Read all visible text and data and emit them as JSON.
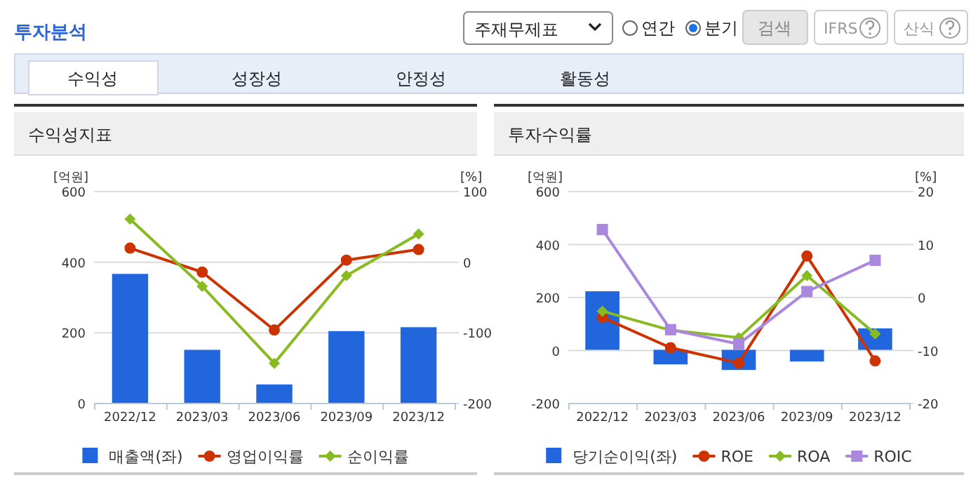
{
  "chart_data": [
    {
      "type": "other",
      "title": "투자분석",
      "annotations": [
        "주재무제표",
        "연간",
        "분기",
        "검색",
        "IFRS",
        "산식",
        "수익성",
        "성장성",
        "안정성",
        "활동성"
      ]
    },
    {
      "type": "bar",
      "title": "수익성지표",
      "ylabel": "[억원]",
      "y2label": "[%]",
      "categories": [
        "2022/12",
        "2023/03",
        "2023/06",
        "2023/09",
        "2023/12"
      ],
      "ylim": [
        0,
        600
      ],
      "yticks": [
        0,
        200,
        400,
        600
      ],
      "y2lim": [
        -200,
        100
      ],
      "y2ticks": [
        -200,
        -100,
        0,
        100
      ],
      "grid": "y",
      "legend": "bottom",
      "series": [
        {
          "name": "매출액(좌)",
          "type": "bar",
          "color": "#2266dd",
          "values": [
            365,
            150,
            52,
            203,
            214
          ]
        },
        {
          "name": "영업이익률",
          "type": "line",
          "axis": "y2",
          "marker": "circle",
          "color": "#cc3300",
          "values": [
            19,
            -15,
            -97,
            2,
            17
          ]
        },
        {
          "name": "순이익률",
          "type": "line",
          "axis": "y2",
          "marker": "diamond",
          "color": "#88bb22",
          "values": [
            60,
            -35,
            -144,
            -20,
            39
          ]
        }
      ]
    },
    {
      "type": "bar",
      "title": "투자수익률",
      "ylabel": "[억원]",
      "y2label": "[%]",
      "categories": [
        "2022/12",
        "2023/03",
        "2023/06",
        "2023/09",
        "2023/12"
      ],
      "ylim": [
        -200,
        600
      ],
      "yticks": [
        -200,
        0,
        200,
        400,
        600
      ],
      "y2lim": [
        -20,
        20
      ],
      "y2ticks": [
        -20,
        -10,
        0,
        10,
        20
      ],
      "grid": "y",
      "legend": "bottom",
      "series": [
        {
          "name": "당기순이익(좌)",
          "type": "bar",
          "color": "#2266dd",
          "values": [
            221,
            -55,
            -76,
            -44,
            81
          ]
        },
        {
          "name": "ROE",
          "type": "line",
          "axis": "y2",
          "marker": "circle",
          "color": "#cc3300",
          "values": [
            -3.9,
            -9.6,
            -12.5,
            7.7,
            -12.1
          ]
        },
        {
          "name": "ROA",
          "type": "line",
          "axis": "y2",
          "marker": "diamond",
          "color": "#88bb22",
          "values": [
            -2.7,
            -6.3,
            -7.7,
            4.0,
            -7.0
          ]
        },
        {
          "name": "ROIC",
          "type": "line",
          "axis": "y2",
          "marker": "square",
          "color": "#aa88dd",
          "values": [
            12.7,
            -6.2,
            -8.9,
            1.0,
            6.9
          ]
        }
      ]
    }
  ]
}
